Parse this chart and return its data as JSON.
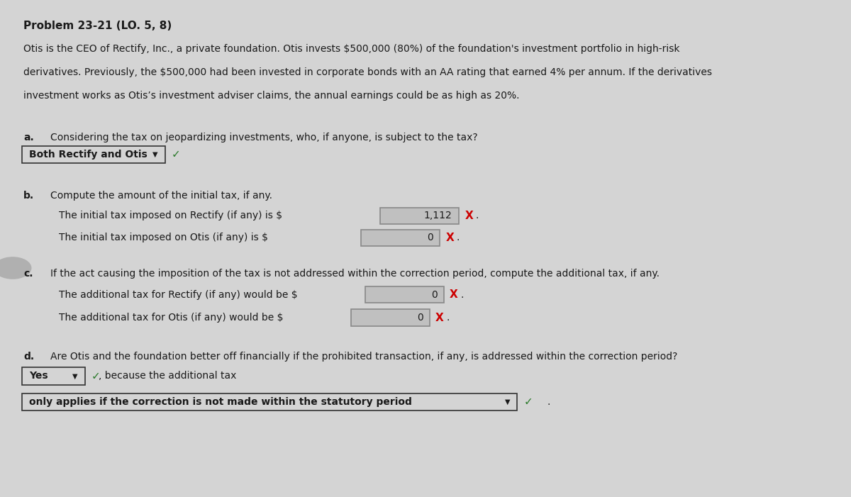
{
  "bg_color": "#d4d4d4",
  "title": "Problem 23-21 (LO. 5, 8)",
  "paragraph_line1": "Otis is the CEO of Rectify, Inc., a private foundation. Otis invests $500,000 (80%) of the foundation's investment portfolio in high-risk",
  "paragraph_line2": "derivatives. Previously, the $500,000 had been invested in corporate bonds with an AA rating that earned 4% per annum. If the derivatives",
  "paragraph_line3": "investment works as Otis’s investment adviser claims, the annual earnings could be as high as 20%.",
  "q_a_label": "a.",
  "q_a_text": "Considering the tax on jeopardizing investments, who, if anyone, is subject to the tax?",
  "q_a_answer": "Both Rectify and Otis",
  "q_b_label": "b.",
  "q_b_text": "Compute the amount of the initial tax, if any.",
  "q_b_line1_pre": "The initial tax imposed on Rectify (if any) is $",
  "q_b_line1_val": "1,112",
  "q_b_line1_mark": "X",
  "q_b_line2_pre": "The initial tax imposed on Otis (if any) is $",
  "q_b_line2_val": "0",
  "q_b_line2_mark": "X",
  "q_c_label": "c.",
  "q_c_text": "If the act causing the imposition of the tax is not addressed within the correction period, compute the additional tax, if any.",
  "q_c_line1_pre": "The additional tax for Rectify (if any) would be $",
  "q_c_line1_val": "0",
  "q_c_line1_mark": "X",
  "q_c_line2_pre": "The additional tax for Otis (if any) would be $",
  "q_c_line2_val": "0",
  "q_c_line2_mark": "X",
  "q_d_label": "d.",
  "q_d_text": "Are Otis and the foundation better off financially if the prohibited transaction, if any, is addressed within the correction period?",
  "q_d_answer": "Yes",
  "q_d_because": ", because the additional tax",
  "q_d_dropdown": "only applies if the correction is not made within the statutory period",
  "text_color": "#1a1a1a",
  "box_fill": "#c0c0c0",
  "box_border": "#888888",
  "dropdown_border": "#333333",
  "check_color": "#2a7a2a",
  "x_color": "#cc0000"
}
